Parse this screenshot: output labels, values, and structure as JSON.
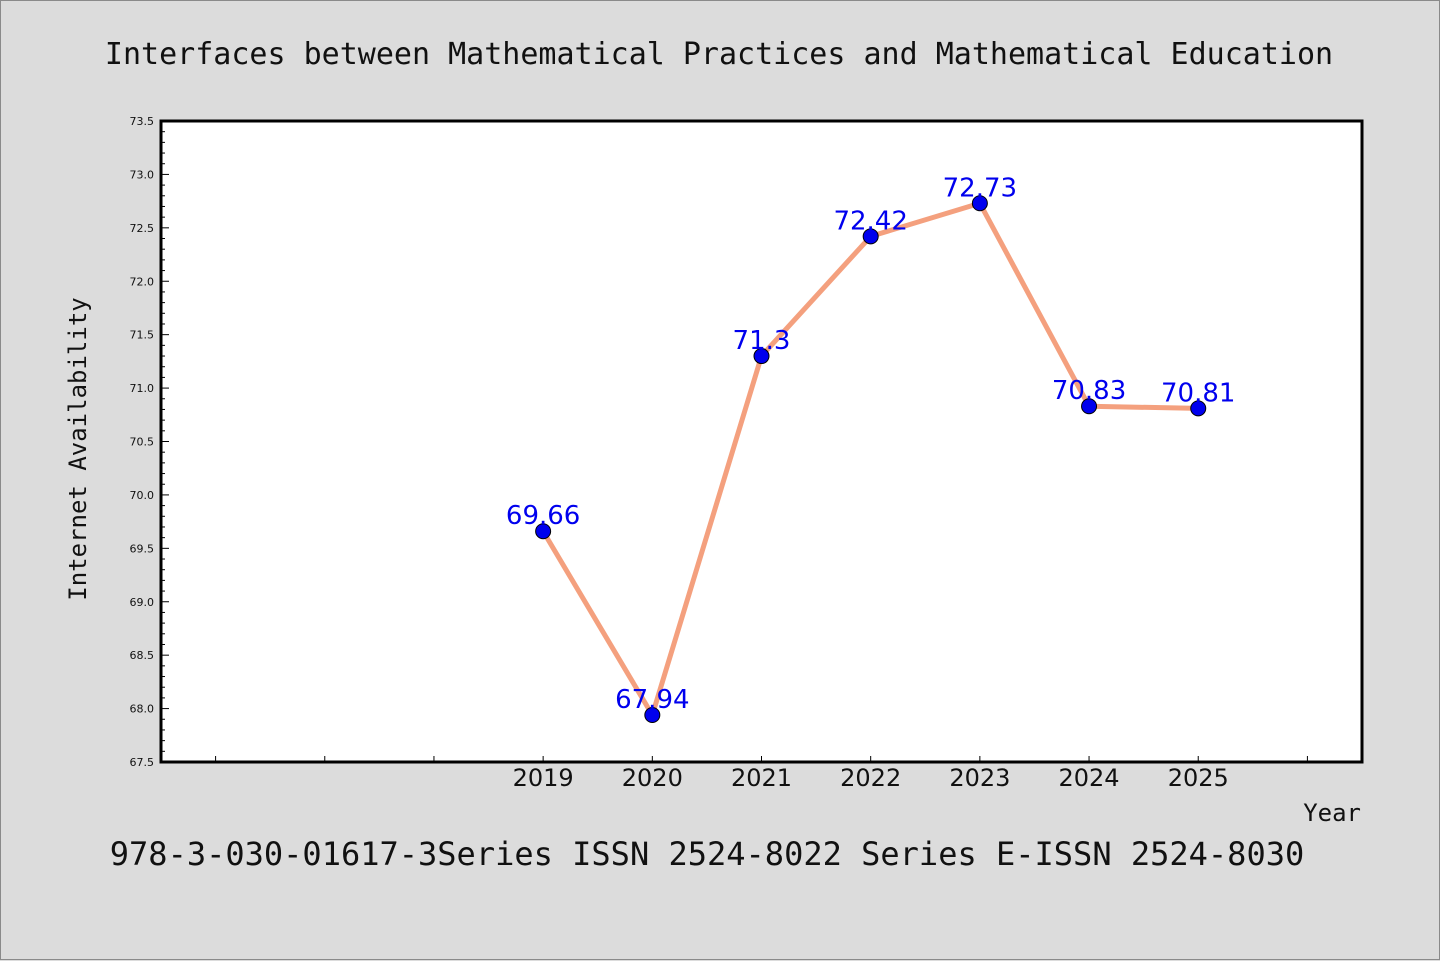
{
  "chart_data": {
    "type": "line",
    "title": "Interfaces between Mathematical Practices and Mathematical Education",
    "footer": "978-3-030-01617-3Series ISSN 2524-8022 Series E-ISSN 2524-8030",
    "xlabel": "Year",
    "ylabel": "Internet Availability",
    "ylim": [
      67.5,
      73.5
    ],
    "yticks": [
      "67.5",
      "68.0",
      "68.5",
      "69.0",
      "69.5",
      "70.0",
      "70.5",
      "71.0",
      "71.5",
      "72.0",
      "72.5",
      "73.0",
      "73.5"
    ],
    "xlim": [
      2015.5,
      2026.5
    ],
    "x": [
      2019,
      2020,
      2021,
      2022,
      2023,
      2024,
      2025
    ],
    "x_tick_labels": [
      "2019",
      "2020",
      "2021",
      "2022",
      "2023",
      "2024",
      "2025"
    ],
    "series": [
      {
        "values": [
          69.66,
          67.94,
          71.3,
          72.42,
          72.73,
          70.83,
          70.81
        ],
        "labels": [
          "69.66",
          "67.94",
          "71.3",
          "72.42",
          "72.73",
          "70.83",
          "70.81"
        ]
      }
    ],
    "line_color": "#f4a07e",
    "marker_color": "#0000ee",
    "label_color": "#0000ee",
    "grid": false
  }
}
